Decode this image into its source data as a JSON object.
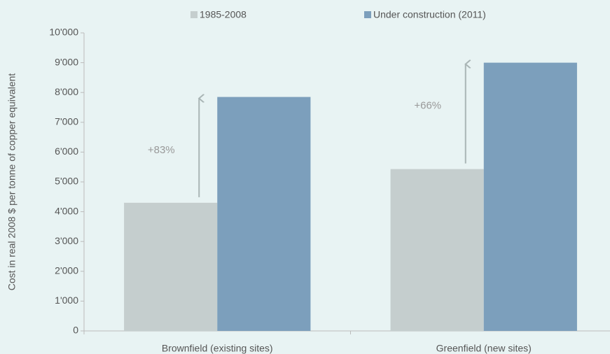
{
  "chart_data": {
    "type": "bar",
    "y_label": "Cost in real 2008 $ per tonne of copper equivalent",
    "categories": [
      "Brownfield (existing sites)",
      "Greenfield (new sites)"
    ],
    "series": [
      {
        "name": "1985-2008",
        "color": "#c5cece",
        "values": [
          4300,
          5430
        ]
      },
      {
        "name": "Under construction (2011)",
        "color": "#7c9fbc",
        "values": [
          7850,
          9000
        ]
      }
    ],
    "annotations": [
      "+83%",
      "+66%"
    ],
    "ylim": [
      0,
      10000
    ],
    "yticks": [
      0,
      {
        "value": 1000,
        "label": "1'000"
      },
      {
        "value": 2000,
        "label": "2'000"
      },
      {
        "value": 3000,
        "label": "3'000"
      },
      {
        "value": 4000,
        "label": "4'000"
      },
      {
        "value": 5000,
        "label": "5'000"
      },
      {
        "value": 6000,
        "label": "6'000"
      },
      {
        "value": 7000,
        "label": "7'000"
      },
      {
        "value": 8000,
        "label": "8'000"
      },
      {
        "value": 9000,
        "label": "9'000"
      },
      {
        "value": 10000,
        "label": "10'000"
      }
    ],
    "legend": "top"
  }
}
